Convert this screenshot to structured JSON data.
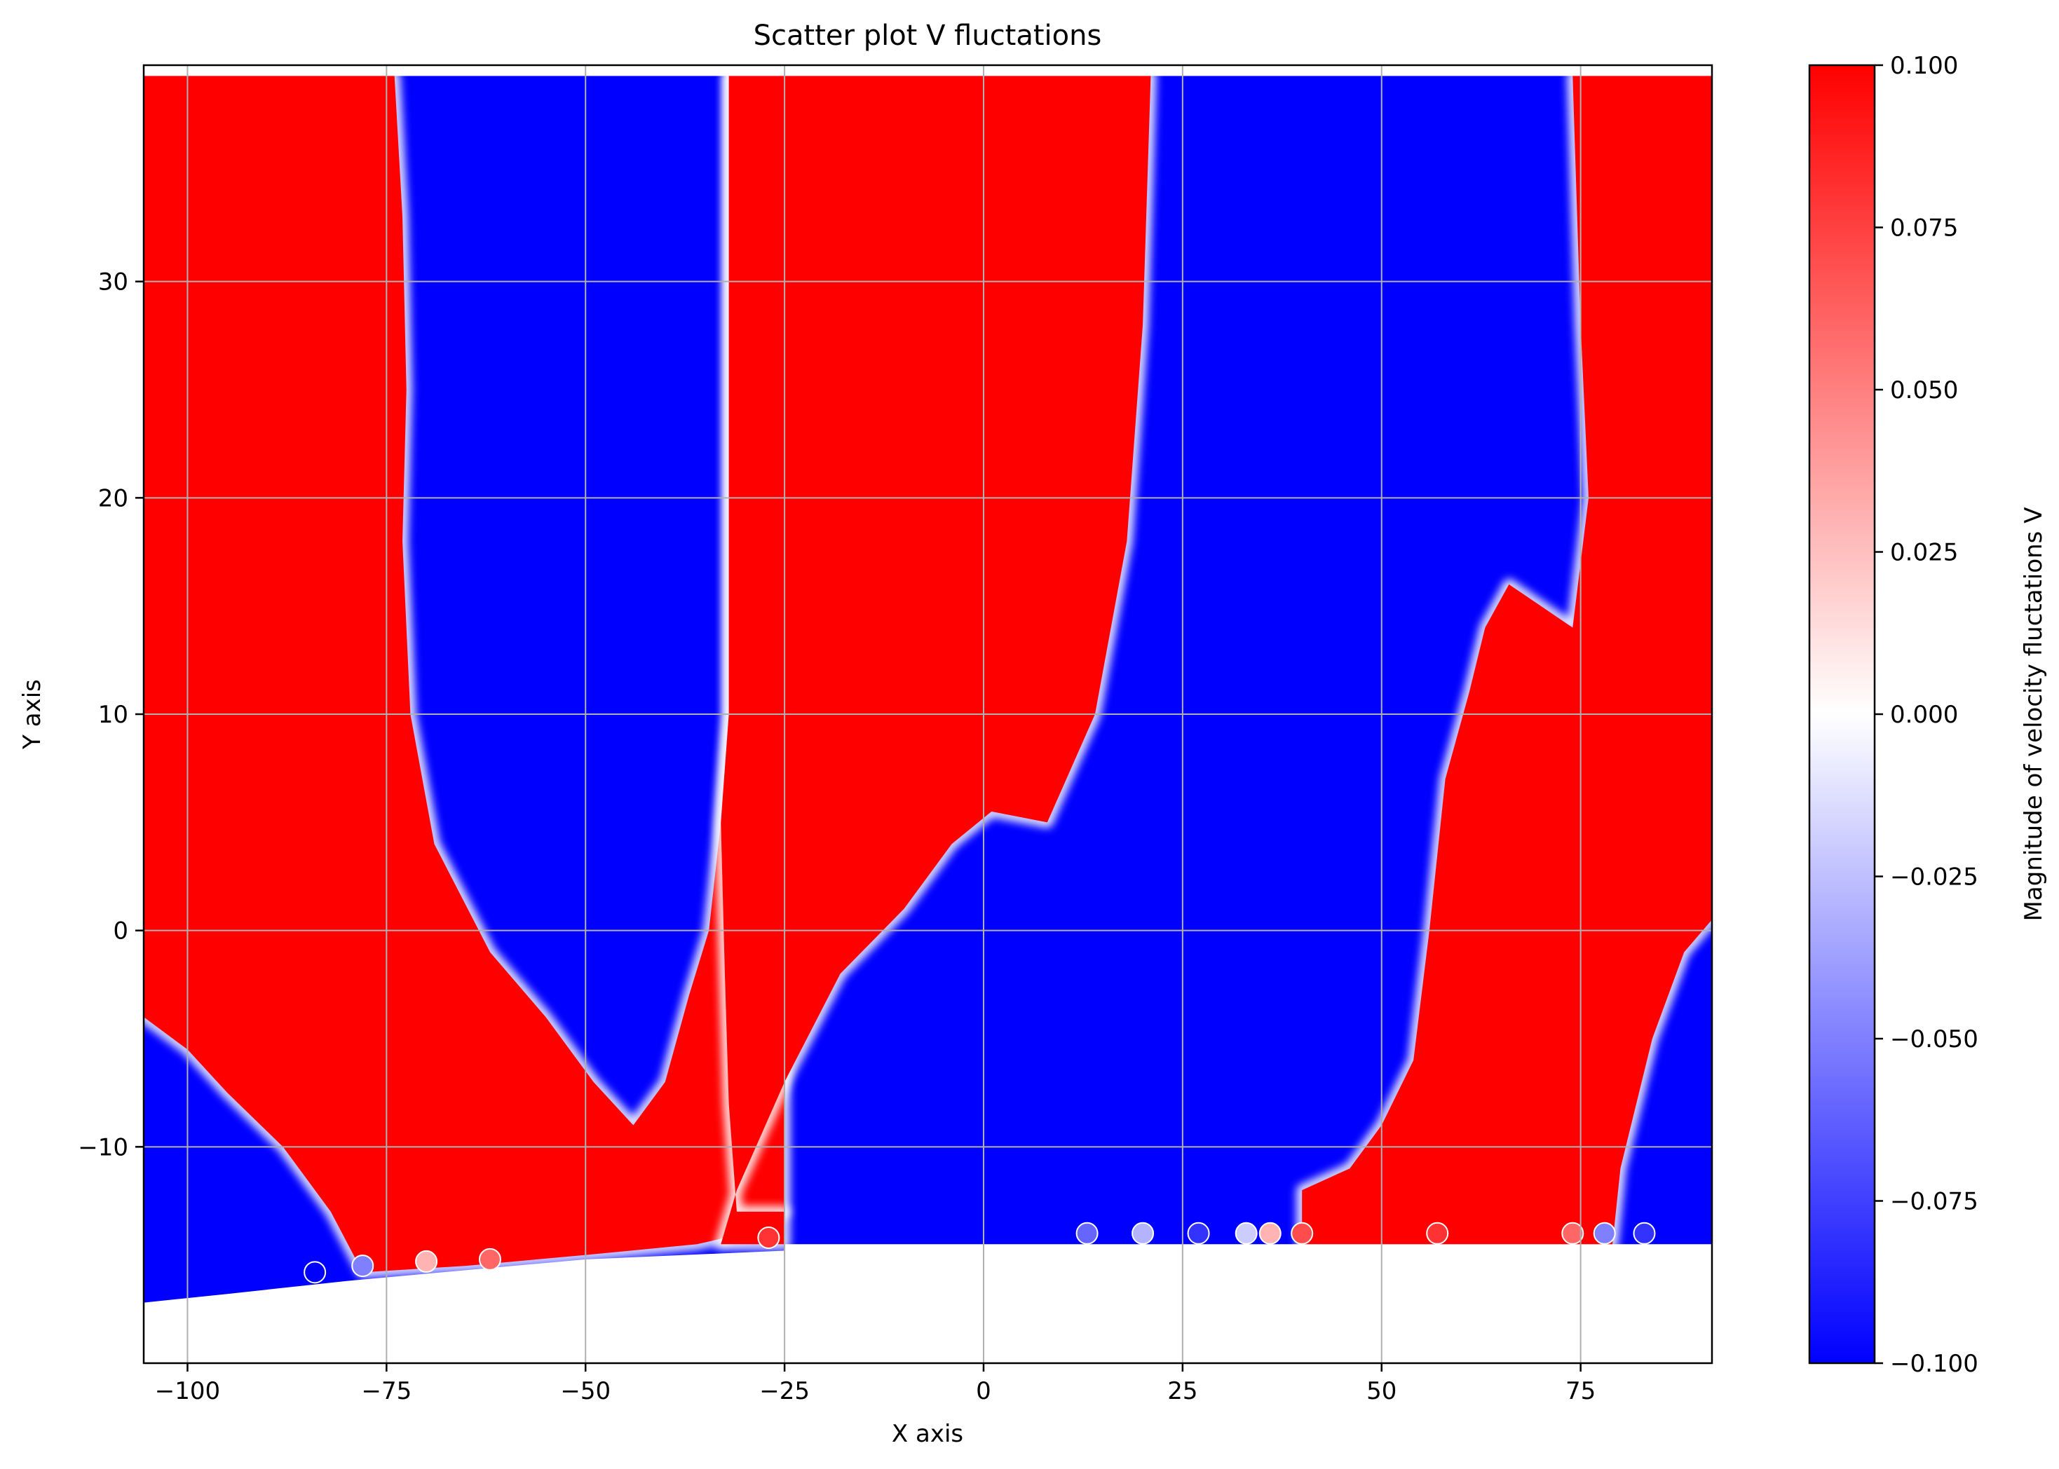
{
  "chart_data": {
    "type": "scatter",
    "title": "Scatter plot V fluctations",
    "xlabel": "X axis",
    "ylabel": "Y axis",
    "xlim": [
      -105.5,
      91.5
    ],
    "ylim": [
      -20,
      40
    ],
    "xticks": [
      -100,
      -75,
      -50,
      -25,
      0,
      25,
      50,
      75
    ],
    "xtick_labels": [
      "−100",
      "−75",
      "−50",
      "−25",
      "0",
      "25",
      "50",
      "75"
    ],
    "yticks": [
      -10,
      0,
      10,
      20,
      30
    ],
    "ytick_labels": [
      "−10",
      "0",
      "10",
      "20",
      "30"
    ],
    "grid": true,
    "colormap": "bwr",
    "colors": {
      "negative": "#0000ff",
      "zero": "#ffffff",
      "positive": "#ff0000",
      "grid": "#b0b0b0"
    },
    "colorbar": {
      "label": "Magnitude of velocity fluctations V",
      "range": [
        -0.1,
        0.1
      ],
      "ticks": [
        0.1,
        0.075,
        0.05,
        0.025,
        0.0,
        -0.025,
        -0.05,
        -0.075,
        -0.1
      ],
      "tick_labels": [
        "0.100",
        "0.075",
        "0.050",
        "0.025",
        "0.000",
        "−0.025",
        "−0.050",
        "−0.075",
        "−0.100"
      ]
    },
    "regions": [
      {
        "sign": "positive",
        "value": 0.1,
        "polygon": [
          [
            -105.5,
            39.5
          ],
          [
            -74,
            39.5
          ],
          [
            -73,
            33
          ],
          [
            -72.5,
            25
          ],
          [
            -73,
            18
          ],
          [
            -72,
            10
          ],
          [
            -69,
            4
          ],
          [
            -62,
            -1
          ],
          [
            -55,
            -4
          ],
          [
            -49,
            -7
          ],
          [
            -44,
            -9
          ],
          [
            -40,
            -7
          ],
          [
            -37,
            -3
          ],
          [
            -34.5,
            0
          ],
          [
            -33,
            5
          ],
          [
            -32,
            10
          ],
          [
            -32,
            39.5
          ],
          [
            -25,
            39.5
          ],
          [
            -25,
            -13
          ],
          [
            -30,
            -14
          ],
          [
            -36,
            -14.5
          ],
          [
            -50,
            -15
          ],
          [
            -65,
            -15.5
          ],
          [
            -78,
            -15.8
          ],
          [
            -82,
            -13
          ],
          [
            -88,
            -10
          ],
          [
            -95,
            -7.5
          ],
          [
            -100,
            -5.5
          ],
          [
            -105.5,
            -4
          ]
        ]
      },
      {
        "sign": "positive",
        "value": 0.1,
        "polygon": [
          [
            -32,
            39.5
          ],
          [
            21,
            39.5
          ],
          [
            20,
            28
          ],
          [
            18,
            18
          ],
          [
            14,
            10
          ],
          [
            8,
            5
          ],
          [
            1,
            5.5
          ],
          [
            -4,
            4
          ],
          [
            -10,
            1
          ],
          [
            -18,
            -2
          ],
          [
            -25,
            -7
          ],
          [
            -31,
            -12
          ],
          [
            -33,
            -14.5
          ],
          [
            -25,
            -14.5
          ],
          [
            -25,
            -13
          ],
          [
            -31,
            -13
          ],
          [
            -32,
            -8
          ],
          [
            -32.5,
            -2
          ],
          [
            -33,
            5
          ],
          [
            -32,
            10
          ]
        ]
      },
      {
        "sign": "positive",
        "value": 0.1,
        "polygon": [
          [
            74,
            39.5
          ],
          [
            91.5,
            39.5
          ],
          [
            91.5,
            0.5
          ],
          [
            88,
            -1
          ],
          [
            84,
            -5
          ],
          [
            80,
            -11
          ],
          [
            79,
            -14.5
          ],
          [
            40,
            -14.5
          ],
          [
            40,
            -12
          ],
          [
            46,
            -11
          ],
          [
            50,
            -9
          ],
          [
            54,
            -6
          ],
          [
            56,
            0
          ],
          [
            58,
            7
          ],
          [
            61,
            11
          ],
          [
            63,
            14
          ],
          [
            66,
            16
          ],
          [
            70,
            15
          ],
          [
            74,
            14
          ],
          [
            76,
            20
          ],
          [
            75,
            28
          ]
        ]
      }
    ],
    "markers": [
      {
        "x": -84,
        "y": -15.8,
        "value": -0.1
      },
      {
        "x": -78,
        "y": -15.5,
        "value": -0.05
      },
      {
        "x": -70,
        "y": -15.3,
        "value": 0.03
      },
      {
        "x": -62,
        "y": -15.2,
        "value": 0.06
      },
      {
        "x": -27,
        "y": -14.2,
        "value": 0.08
      },
      {
        "x": 13,
        "y": -14,
        "value": -0.06
      },
      {
        "x": 20,
        "y": -14,
        "value": -0.03
      },
      {
        "x": 27,
        "y": -14,
        "value": -0.08
      },
      {
        "x": 33,
        "y": -14,
        "value": -0.02
      },
      {
        "x": 36,
        "y": -14,
        "value": 0.03
      },
      {
        "x": 40,
        "y": -14,
        "value": 0.07
      },
      {
        "x": 57,
        "y": -14,
        "value": 0.08
      },
      {
        "x": 74,
        "y": -14,
        "value": 0.06
      },
      {
        "x": 78,
        "y": -14,
        "value": -0.05
      },
      {
        "x": 83,
        "y": -14,
        "value": -0.08
      }
    ]
  }
}
